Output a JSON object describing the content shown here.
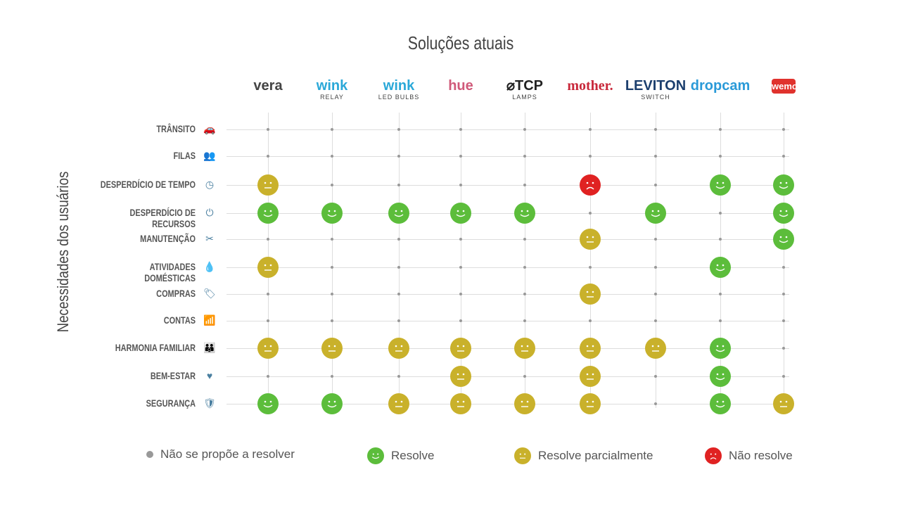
{
  "title": "Soluções atuais",
  "y_axis_label": "Necessidades dos usuários",
  "colors": {
    "resolve": "#5cbd3b",
    "partial": "#c9b12b",
    "no": "#e02222",
    "none": "#999999"
  },
  "solutions": [
    {
      "name": "vera",
      "sub": "",
      "color": "#444444"
    },
    {
      "name": "wink",
      "sub": "RELAY",
      "color": "#2aa8d8"
    },
    {
      "name": "wink",
      "sub": "LED BULBS",
      "color": "#2aa8d8"
    },
    {
      "name": "hue",
      "sub": "",
      "color": "#d05a7a"
    },
    {
      "name": "⌀TCP",
      "sub": "LAMPS",
      "color": "#222222"
    },
    {
      "name": "mother.",
      "sub": "",
      "color": "#c8283a"
    },
    {
      "name": "LEVITON",
      "sub": "SWITCH",
      "color": "#1c3f6e"
    },
    {
      "name": "dropcam",
      "sub": "",
      "color": "#2a9ad8"
    },
    {
      "name": "wemo",
      "sub": "",
      "color": "#ffffff"
    }
  ],
  "needs": [
    {
      "label": "TRÂNSITO",
      "icon": "car-icon",
      "glyph": "🚗",
      "values": "........."
    },
    {
      "label": "FILAS",
      "icon": "queue-icon",
      "glyph": "👥",
      "values": "........."
    },
    {
      "label": "DESPERDÍCIO DE TEMPO",
      "icon": "clock-icon",
      "glyph": "◷",
      "values": "p....n.rr"
    },
    {
      "label": "DESPERDÍCIO DE RECURSOS",
      "icon": "plug-icon",
      "glyph": "⏻",
      "values": "rrrrr.r.r"
    },
    {
      "label": "MANUTENÇÃO",
      "icon": "tools-icon",
      "glyph": "✂",
      "values": ".....p..r"
    },
    {
      "label": "ATIVIDADES DOMÉSTICAS",
      "icon": "water-icon",
      "glyph": "💧",
      "values": "p......r."
    },
    {
      "label": "COMPRAS",
      "icon": "tag-icon",
      "glyph": "🏷",
      "values": ".....p..."
    },
    {
      "label": "CONTAS",
      "icon": "chart-icon",
      "glyph": "📶",
      "values": "........."
    },
    {
      "label": "HARMONIA FAMILIAR",
      "icon": "family-icon",
      "glyph": "👪",
      "values": "pppppppr."
    },
    {
      "label": "BEM-ESTAR",
      "icon": "heart-icon",
      "glyph": "♥",
      "values": "...p.p.r."
    },
    {
      "label": "SEGURANÇA",
      "icon": "shield-icon",
      "glyph": "🛡",
      "values": "rrpppp.rp"
    }
  ],
  "legend": [
    {
      "key": "none",
      "label": "Não se propõe a resolver"
    },
    {
      "key": "resolve",
      "label": "Resolve"
    },
    {
      "key": "partial",
      "label": "Resolve parcialmente"
    },
    {
      "key": "no",
      "label": "Não resolve"
    }
  ]
}
